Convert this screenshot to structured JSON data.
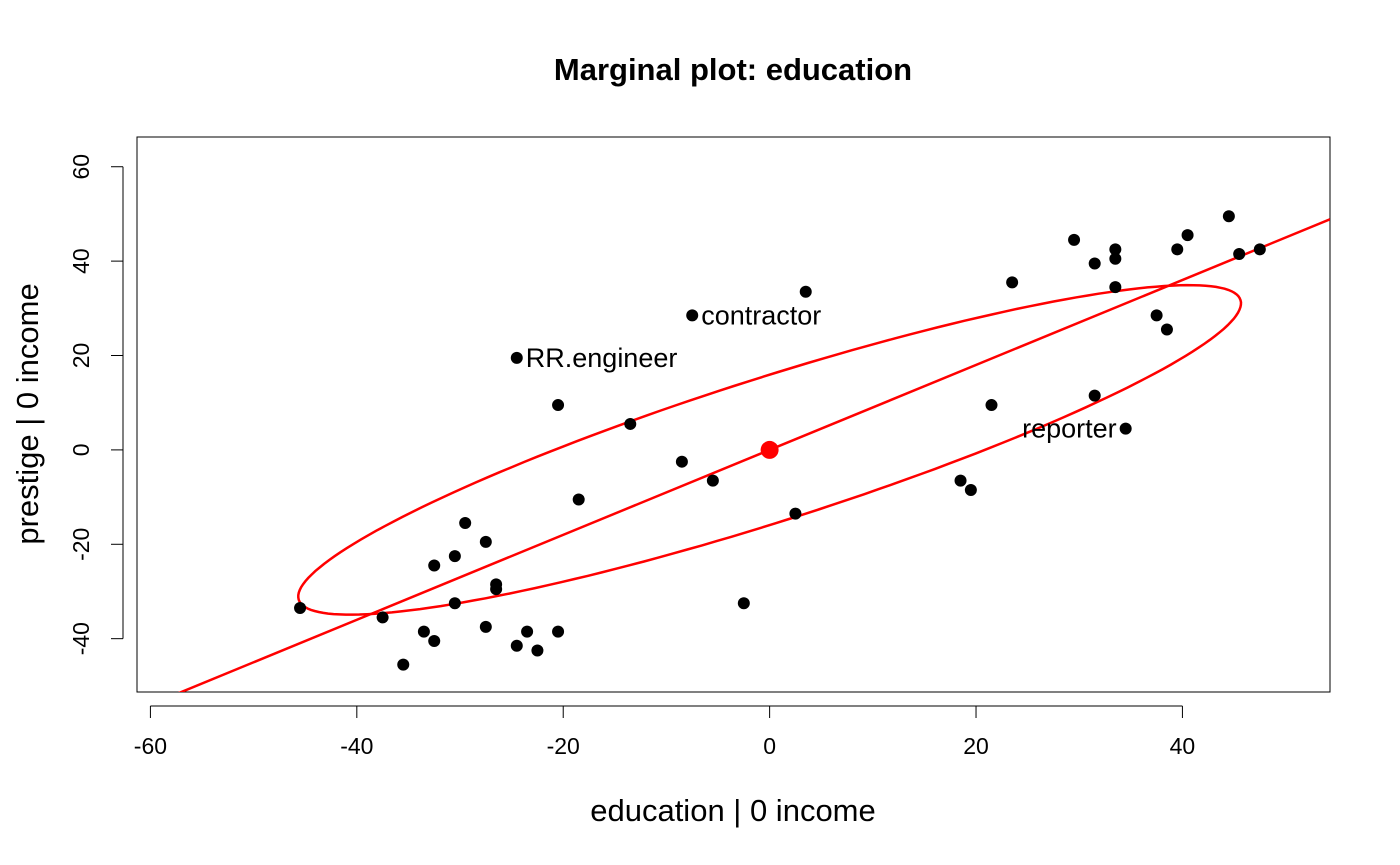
{
  "chart_data": {
    "type": "scatter",
    "title": "Marginal plot: education",
    "xlabel": "education |  0 income",
    "ylabel": "prestige |  0 income",
    "xlim": [
      -61.3,
      54.3
    ],
    "ylim": [
      -51.3,
      66.3
    ],
    "x_ticks": [
      -60,
      -40,
      -20,
      0,
      20,
      40
    ],
    "y_ticks": [
      -40,
      -20,
      0,
      20,
      40,
      60
    ],
    "grid": false,
    "colors": {
      "points": "#000000",
      "fit_line": "#ff0000",
      "ellipse": "#ff0000",
      "center": "#ff0000"
    },
    "series": [
      {
        "values": [
          {
            "x": -45.5,
            "y": -33.5
          },
          {
            "x": -37.5,
            "y": -35.5
          },
          {
            "x": -35.5,
            "y": -45.5
          },
          {
            "x": -33.5,
            "y": -38.5
          },
          {
            "x": -32.5,
            "y": -40.5
          },
          {
            "x": -32.5,
            "y": -24.5
          },
          {
            "x": -30.5,
            "y": -22.5
          },
          {
            "x": -30.5,
            "y": -32.5
          },
          {
            "x": -29.5,
            "y": -15.5
          },
          {
            "x": -27.5,
            "y": -19.5
          },
          {
            "x": -27.5,
            "y": -37.5
          },
          {
            "x": -26.5,
            "y": -28.5
          },
          {
            "x": -26.5,
            "y": -29.5
          },
          {
            "x": -24.5,
            "y": 19.5
          },
          {
            "x": -24.5,
            "y": -41.5
          },
          {
            "x": -23.5,
            "y": -38.5
          },
          {
            "x": -22.5,
            "y": -42.5
          },
          {
            "x": -20.5,
            "y": 9.5
          },
          {
            "x": -20.5,
            "y": -38.5
          },
          {
            "x": -18.5,
            "y": -10.5
          },
          {
            "x": -13.5,
            "y": 5.5
          },
          {
            "x": -8.5,
            "y": -2.5
          },
          {
            "x": -7.5,
            "y": 28.5
          },
          {
            "x": -5.5,
            "y": -6.5
          },
          {
            "x": -2.5,
            "y": -32.5
          },
          {
            "x": 2.5,
            "y": -13.5
          },
          {
            "x": 3.5,
            "y": 33.5
          },
          {
            "x": 18.5,
            "y": -6.5
          },
          {
            "x": 19.5,
            "y": -8.5
          },
          {
            "x": 21.5,
            "y": 9.5
          },
          {
            "x": 23.5,
            "y": 35.5
          },
          {
            "x": 29.5,
            "y": 44.5
          },
          {
            "x": 31.5,
            "y": 39.5
          },
          {
            "x": 31.5,
            "y": 11.5
          },
          {
            "x": 33.5,
            "y": 42.5
          },
          {
            "x": 33.5,
            "y": 40.5
          },
          {
            "x": 33.5,
            "y": 34.5
          },
          {
            "x": 34.5,
            "y": 4.5
          },
          {
            "x": 37.5,
            "y": 28.5
          },
          {
            "x": 38.5,
            "y": 25.5
          },
          {
            "x": 39.5,
            "y": 42.5
          },
          {
            "x": 40.5,
            "y": 45.5
          },
          {
            "x": 44.5,
            "y": 49.5
          },
          {
            "x": 45.5,
            "y": 41.5
          },
          {
            "x": 47.5,
            "y": 42.5
          }
        ]
      }
    ],
    "labeled_points": [
      {
        "label": "RR.engineer",
        "x": -24.5,
        "y": 19.5,
        "position": "right"
      },
      {
        "label": "contractor",
        "x": -7.5,
        "y": 28.5,
        "position": "right"
      },
      {
        "label": "reporter",
        "x": 34.5,
        "y": 4.5,
        "position": "left"
      }
    ],
    "center": {
      "x": 0,
      "y": 0
    },
    "fit_line": {
      "slope": 0.9,
      "intercept": 0
    },
    "ellipse": {
      "center": [
        0,
        0
      ],
      "a": 56,
      "b": 13,
      "angle_deg": 36.5
    }
  }
}
